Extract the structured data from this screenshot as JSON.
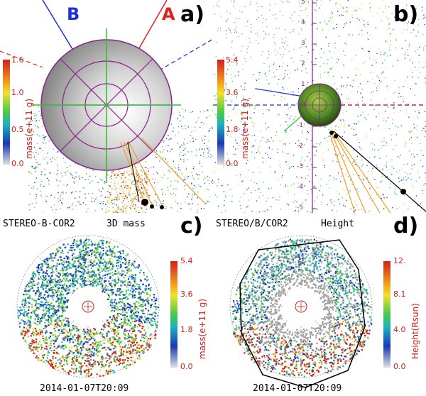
{
  "panel_a": {
    "label": "a)",
    "line_b_label": "B",
    "line_a_label": "A",
    "colorbar": {
      "title": "mass(e+11 g)",
      "ticks": [
        "1.6",
        "1.0",
        "0.5",
        "0.0"
      ]
    },
    "colors": {
      "line_b": "#1f2fe0",
      "line_a": "#e0201c",
      "grid": "#8a1f8f",
      "axes": "#2ec82e"
    }
  },
  "panel_b": {
    "label": "b)",
    "colorbar": {
      "title": "mass(e+11 g)",
      "ticks": [
        "5.4",
        "3.6",
        "1.8",
        "0.0"
      ]
    },
    "axis_ticks": [
      "5",
      "4",
      "3",
      "2",
      "1",
      "0",
      "-1",
      "-2",
      "-3",
      "-4",
      "-5"
    ]
  },
  "panel_c": {
    "label": "c)",
    "header_left": "STEREO-B-COR2",
    "header_right": "3D mass",
    "timestamp": "2014-01-07T20:09",
    "colorbar": {
      "title": "mass(e+11 g)",
      "ticks": [
        "5.4",
        "3.6",
        "1.8",
        "0.0"
      ]
    }
  },
  "panel_d": {
    "label": "d)",
    "header_left": "STEREO/B/COR2",
    "header_right": "Height",
    "timestamp": "2014-01-07T20:09",
    "colorbar": {
      "title": "Height(Rsun)",
      "ticks": [
        "12.",
        "8.1",
        "4.0",
        "0.0"
      ]
    }
  }
}
